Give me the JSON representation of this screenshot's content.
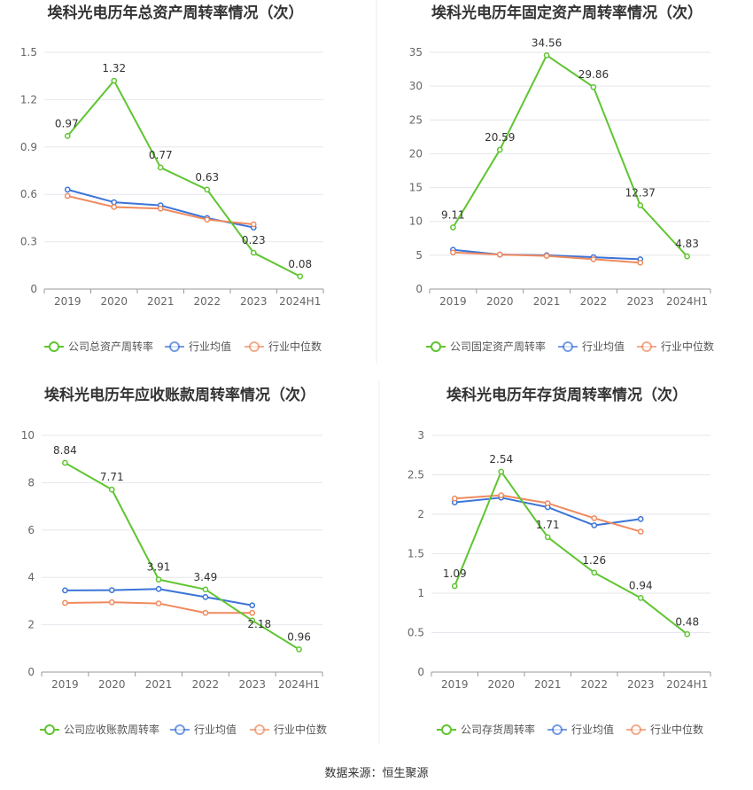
{
  "source_text": "数据来源：恒生聚源",
  "legend_common": {
    "industry_avg": "行业均值",
    "industry_median": "行业中位数"
  },
  "colors": {
    "company": "#5fc531",
    "avg": "#3b74d8",
    "median": "#ef8a5e"
  },
  "chart_data": [
    {
      "type": "line",
      "title": "埃科光电历年总资产周转率情况（次）",
      "categories": [
        "2019",
        "2020",
        "2021",
        "2022",
        "2023",
        "2024H1"
      ],
      "y_ticks": [
        "0",
        "0.3",
        "0.6",
        "0.9",
        "1.2",
        "1.5"
      ],
      "ylim": [
        0,
        1.5
      ],
      "series": [
        {
          "name": "公司总资产周转率",
          "values": [
            0.97,
            1.32,
            0.77,
            0.63,
            0.23,
            0.08
          ],
          "labels": [
            "0.97",
            "1.32",
            "0.77",
            "0.63",
            "0.23",
            "0.08"
          ]
        },
        {
          "name": "行业均值",
          "values": [
            0.63,
            0.55,
            0.53,
            0.45,
            0.39,
            null
          ]
        },
        {
          "name": "行业中位数",
          "values": [
            0.59,
            0.52,
            0.51,
            0.44,
            0.41,
            null
          ]
        }
      ]
    },
    {
      "type": "line",
      "title": "埃科光电历年固定资产周转率情况（次）",
      "categories": [
        "2019",
        "2020",
        "2021",
        "2022",
        "2023",
        "2024H1"
      ],
      "y_ticks": [
        "0",
        "5",
        "10",
        "15",
        "20",
        "25",
        "30",
        "35"
      ],
      "ylim": [
        0,
        35
      ],
      "series": [
        {
          "name": "公司固定资产周转率",
          "values": [
            9.11,
            20.59,
            34.56,
            29.86,
            12.37,
            4.83
          ],
          "labels": [
            "9.11",
            "20.59",
            "34.56",
            "29.86",
            "12.37",
            "4.83"
          ]
        },
        {
          "name": "行业均值",
          "values": [
            5.8,
            5.1,
            5.0,
            4.7,
            4.4,
            null
          ]
        },
        {
          "name": "行业中位数",
          "values": [
            5.4,
            5.1,
            4.9,
            4.4,
            3.9,
            null
          ]
        }
      ]
    },
    {
      "type": "line",
      "title": "埃科光电历年应收账款周转率情况（次）",
      "categories": [
        "2019",
        "2020",
        "2021",
        "2022",
        "2023",
        "2024H1"
      ],
      "y_ticks": [
        "0",
        "2",
        "4",
        "6",
        "8",
        "10"
      ],
      "ylim": [
        0,
        10
      ],
      "series": [
        {
          "name": "公司应收账款周转率",
          "values": [
            8.84,
            7.71,
            3.91,
            3.49,
            2.18,
            0.96
          ],
          "labels": [
            "8.84",
            "7.71",
            "3.91",
            "3.49",
            "2.18",
            "0.96"
          ]
        },
        {
          "name": "行业均值",
          "values": [
            3.45,
            3.46,
            3.51,
            3.17,
            2.82,
            null
          ]
        },
        {
          "name": "行业中位数",
          "values": [
            2.92,
            2.95,
            2.9,
            2.5,
            2.5,
            null
          ]
        }
      ]
    },
    {
      "type": "line",
      "title": "埃科光电历年存货周转率情况（次）",
      "categories": [
        "2019",
        "2020",
        "2021",
        "2022",
        "2023",
        "2024H1"
      ],
      "y_ticks": [
        "0",
        "0.5",
        "1",
        "1.5",
        "2",
        "2.5",
        "3"
      ],
      "ylim": [
        0,
        3
      ],
      "series": [
        {
          "name": "公司存货周转率",
          "values": [
            1.09,
            2.54,
            1.71,
            1.26,
            0.94,
            0.48
          ],
          "labels": [
            "1.09",
            "2.54",
            "1.71",
            "1.26",
            "0.94",
            "0.48"
          ]
        },
        {
          "name": "行业均值",
          "values": [
            2.15,
            2.21,
            2.09,
            1.86,
            1.94,
            null
          ]
        },
        {
          "name": "行业中位数",
          "values": [
            2.2,
            2.24,
            2.14,
            1.95,
            1.78,
            null
          ]
        }
      ]
    }
  ]
}
